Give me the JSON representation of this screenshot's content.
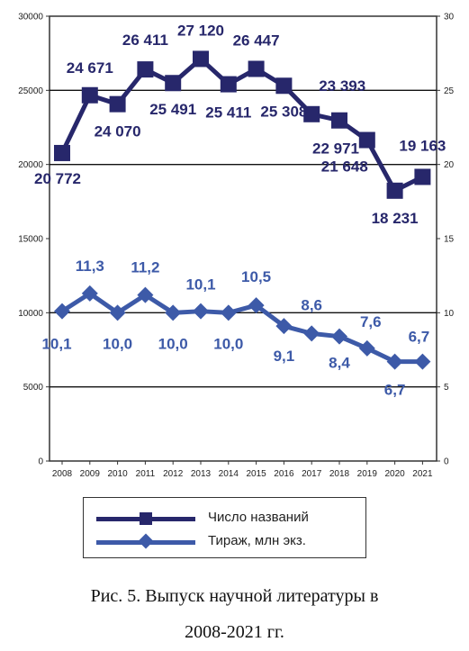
{
  "chart_data": {
    "type": "line",
    "categories": [
      "2008",
      "2009",
      "2010",
      "2011",
      "2012",
      "2013",
      "2014",
      "2015",
      "2016",
      "2017",
      "2018",
      "2019",
      "2020",
      "2021"
    ],
    "y_left": {
      "ticks": [
        "0",
        "5000",
        "10000",
        "15000",
        "20000",
        "25000",
        "30000"
      ],
      "ylim": [
        0,
        30000
      ]
    },
    "y_right": {
      "ticks": [
        "0",
        "5",
        "10",
        "15",
        "20",
        "25",
        "30"
      ],
      "ylim": [
        0,
        30
      ]
    },
    "grid": "horizontal at 5000, 10000, 20000, 25000",
    "series": [
      {
        "name": "Число названий",
        "axis": "left",
        "color": "#27276b",
        "marker": "square",
        "values": [
          20772,
          24671,
          24070,
          26411,
          25491,
          27120,
          25411,
          26447,
          25308,
          23393,
          22971,
          21648,
          18231,
          19163
        ],
        "labels": [
          "20 772",
          "24 671",
          "24 070",
          "26 411",
          "25 491",
          "27 120",
          "25 411",
          "26 447",
          "25 308",
          "23 393",
          "22 971",
          "21 648",
          "18 231",
          "19 163"
        ]
      },
      {
        "name": "Тираж, млн экз.",
        "axis": "right",
        "color": "#3d5aa8",
        "marker": "diamond",
        "values": [
          10.1,
          11.3,
          10.0,
          11.2,
          10.0,
          10.1,
          10.0,
          10.5,
          9.1,
          8.6,
          8.4,
          7.6,
          6.7,
          6.7
        ],
        "labels": [
          "10,1",
          "11,3",
          "10,0",
          "11,2",
          "10,0",
          "10,1",
          "10,0",
          "10,5",
          "9,1",
          "8,6",
          "8,4",
          "7,6",
          "6,7",
          "6,7"
        ]
      }
    ],
    "legend_position": "bottom"
  },
  "legend": {
    "series1": "Число названий",
    "series2": "Тираж, млн экз."
  },
  "caption": {
    "line1": "Рис. 5. Выпуск научной литературы в",
    "line2": "2008-2021 гг."
  }
}
